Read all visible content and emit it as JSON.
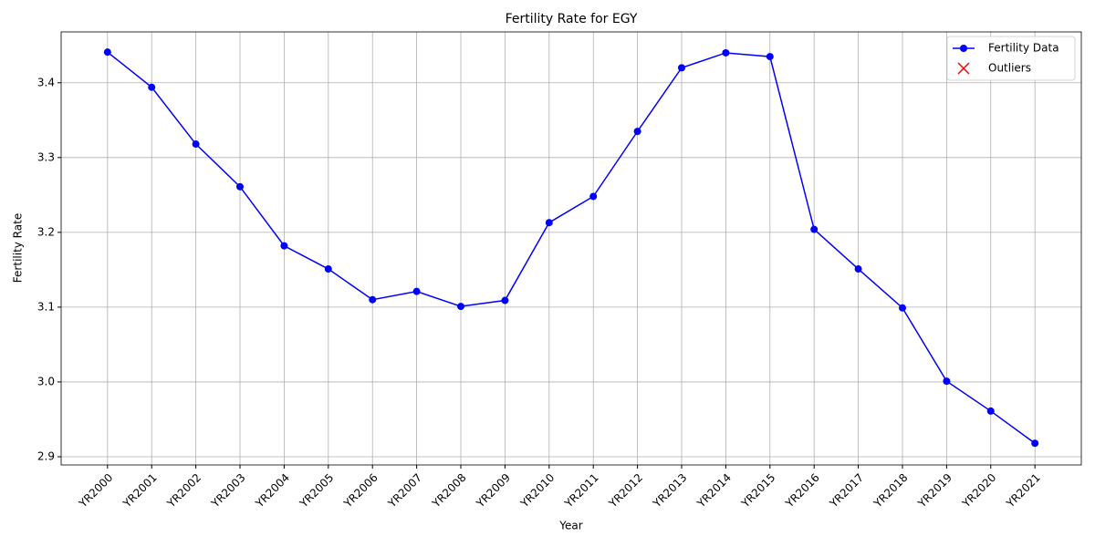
{
  "chart_data": {
    "type": "line",
    "title": "Fertility Rate for EGY",
    "x_label": "Year",
    "y_label": "Fertility Rate",
    "categories": [
      "YR2000",
      "YR2001",
      "YR2002",
      "YR2003",
      "YR2004",
      "YR2005",
      "YR2006",
      "YR2007",
      "YR2008",
      "YR2009",
      "YR2010",
      "YR2011",
      "YR2012",
      "YR2013",
      "YR2014",
      "YR2015",
      "YR2016",
      "YR2017",
      "YR2018",
      "YR2019",
      "YR2020",
      "YR2021"
    ],
    "series": [
      {
        "name": "Fertility Data",
        "color": "#0000ff",
        "marker": "o",
        "values": [
          3.441,
          3.394,
          3.318,
          3.261,
          3.182,
          3.151,
          3.11,
          3.121,
          3.101,
          3.109,
          3.213,
          3.248,
          3.335,
          3.42,
          3.44,
          3.435,
          3.204,
          3.151,
          3.099,
          3.001,
          2.961,
          2.918
        ]
      },
      {
        "name": "Outliers",
        "color": "#ff0000",
        "marker": "x",
        "values": [
          null,
          null,
          null,
          null,
          null,
          null,
          null,
          null,
          null,
          null,
          null,
          null,
          null,
          null,
          null,
          null,
          null,
          null,
          null,
          null,
          null,
          null
        ]
      }
    ],
    "ylim": [
      2.889,
      3.468
    ],
    "yticks": [
      2.9,
      {
        "value": 3,
        "label": "3.0"
      },
      3.1,
      3.2,
      3.3,
      3.4
    ],
    "grid": true,
    "legend": "upper right"
  }
}
